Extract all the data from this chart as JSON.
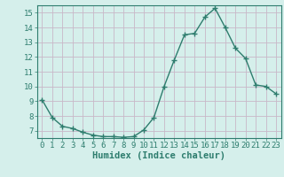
{
  "x": [
    0,
    1,
    2,
    3,
    4,
    5,
    6,
    7,
    8,
    9,
    10,
    11,
    12,
    13,
    14,
    15,
    16,
    17,
    18,
    19,
    20,
    21,
    22,
    23
  ],
  "y": [
    9.1,
    7.9,
    7.3,
    7.15,
    6.9,
    6.7,
    6.6,
    6.6,
    6.55,
    6.6,
    7.05,
    7.9,
    10.0,
    11.8,
    13.5,
    13.6,
    14.7,
    15.3,
    14.0,
    12.6,
    11.9,
    10.1,
    10.0,
    9.5
  ],
  "line_color": "#2e7d6e",
  "marker": "+",
  "marker_size": 4,
  "bg_color": "#d5efeb",
  "grid_color": "#c8b8c8",
  "xlabel": "Humidex (Indice chaleur)",
  "xlim": [
    -0.5,
    23.5
  ],
  "ylim": [
    6.5,
    15.5
  ],
  "yticks": [
    7,
    8,
    9,
    10,
    11,
    12,
    13,
    14,
    15
  ],
  "xticks": [
    0,
    1,
    2,
    3,
    4,
    5,
    6,
    7,
    8,
    9,
    10,
    11,
    12,
    13,
    14,
    15,
    16,
    17,
    18,
    19,
    20,
    21,
    22,
    23
  ],
  "tick_color": "#2e7d6e",
  "label_color": "#2e7d6e",
  "font_size": 6.5
}
